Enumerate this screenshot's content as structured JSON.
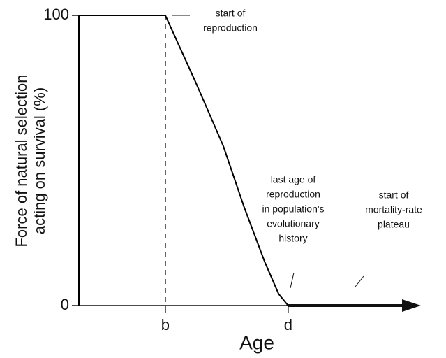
{
  "chart_data": {
    "type": "line",
    "xlabel": "Age",
    "ylabel": [
      "Force of natural selection",
      "acting on survival (%)"
    ],
    "x": [
      0,
      0,
      1,
      1.35,
      1.67,
      1.91,
      2.15,
      2.31,
      2.42
    ],
    "series": [
      {
        "color": "#000000",
        "values": [
          0,
          100,
          100,
          77,
          55,
          34,
          15,
          4,
          0
        ]
      }
    ],
    "xlim": [
      0,
      3.85
    ],
    "ylim": [
      0,
      100
    ],
    "xticks": [
      {
        "value": 1,
        "label": "b"
      },
      {
        "value": 2.42,
        "label": "d"
      }
    ],
    "yticks": [
      0,
      100
    ],
    "annotations": [
      {
        "lines": [
          "start of",
          "reproduction"
        ]
      },
      {
        "lines": [
          "last age of",
          "reproduction",
          "in population's",
          "evolutionary",
          "history"
        ]
      },
      {
        "lines": [
          "start of",
          "mortality-rate",
          "plateau"
        ]
      }
    ]
  }
}
